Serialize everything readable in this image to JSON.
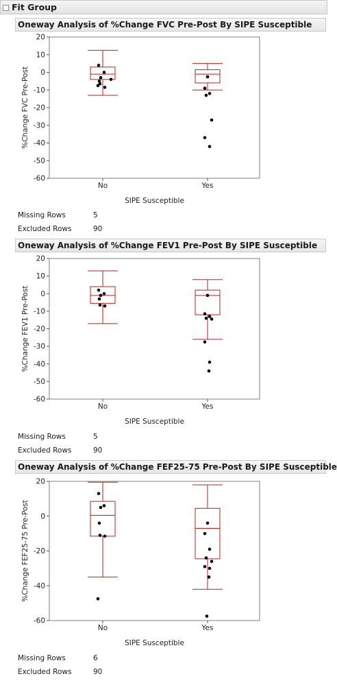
{
  "group_title": "Fit Group",
  "colors": {
    "box": "#b22222",
    "point": "#000000",
    "frame": "#7f7f7f"
  },
  "analyses": [
    {
      "title": "Oneway Analysis of %Change FVC Pre-Post By SIPE Susceptible",
      "chart_data": {
        "type": "box",
        "xlabel": "SIPE Susceptible",
        "ylabel": "%Change FVC Pre-Post",
        "categories": [
          "No",
          "Yes"
        ],
        "ylim": [
          -60,
          20
        ],
        "yticks": [
          -60,
          -50,
          -40,
          -30,
          -20,
          -10,
          0,
          10,
          20
        ],
        "grid": false,
        "boxes": [
          {
            "category": "No",
            "min": -13,
            "q1": -4,
            "median": -1,
            "q3": 3,
            "max": 12.5
          },
          {
            "category": "Yes",
            "min": -10,
            "q1": -6,
            "median": -1,
            "q3": 1.5,
            "max": 5
          }
        ],
        "points": [
          {
            "category": "No",
            "values": [
              4,
              0,
              -3,
              -5,
              -6.5,
              -8.5,
              -7.5,
              -4
            ]
          },
          {
            "category": "Yes",
            "values": [
              -2.5,
              -9,
              -12,
              -13,
              -27,
              -37,
              -42
            ]
          }
        ]
      },
      "missing_label": "Missing Rows",
      "missing_value": "5",
      "excluded_label": "Excluded Rows",
      "excluded_value": "90"
    },
    {
      "title": "Oneway Analysis of %Change FEV1 Pre-Post By SIPE Susceptible",
      "chart_data": {
        "type": "box",
        "xlabel": "SIPE Susceptible",
        "ylabel": "%Change FEV1 Pre-Post",
        "categories": [
          "No",
          "Yes"
        ],
        "ylim": [
          -60,
          20
        ],
        "yticks": [
          -60,
          -50,
          -40,
          -30,
          -20,
          -10,
          0,
          10,
          20
        ],
        "grid": false,
        "boxes": [
          {
            "category": "No",
            "min": -17,
            "q1": -5.5,
            "median": -1,
            "q3": 4,
            "max": 13
          },
          {
            "category": "Yes",
            "min": -26,
            "q1": -12,
            "median": -1,
            "q3": 2,
            "max": 8
          }
        ],
        "points": [
          {
            "category": "No",
            "values": [
              2,
              0,
              -1,
              -3,
              -6.5,
              -7
            ]
          },
          {
            "category": "Yes",
            "values": [
              -1,
              -11.5,
              -13,
              -14,
              -14.5,
              -27.5,
              -39,
              -44
            ]
          }
        ]
      },
      "missing_label": "Missing Rows",
      "missing_value": "5",
      "excluded_label": "Excluded Rows",
      "excluded_value": "90"
    },
    {
      "title": "Oneway Analysis of %Change FEF25-75 Pre-Post By SIPE Susceptible",
      "chart_data": {
        "type": "box",
        "xlabel": "SIPE Susceptible",
        "ylabel": "%Change FEF25-75 Pre-Post",
        "categories": [
          "No",
          "Yes"
        ],
        "ylim": [
          -60,
          20
        ],
        "yticks": [
          -60,
          -40,
          -20,
          0,
          20
        ],
        "grid": false,
        "boxes": [
          {
            "category": "No",
            "min": -35,
            "q1": -11.5,
            "median": 0.5,
            "q3": 8.5,
            "max": 19.5
          },
          {
            "category": "Yes",
            "min": -42,
            "q1": -24.5,
            "median": -7,
            "q3": 4.5,
            "max": 18
          }
        ],
        "points": [
          {
            "category": "No",
            "values": [
              13,
              6,
              5,
              -4,
              -11,
              -11.5,
              -47.5
            ]
          },
          {
            "category": "Yes",
            "values": [
              -4,
              -10,
              -19,
              -24,
              -26,
              -29,
              -30,
              -35,
              -57.5
            ]
          }
        ]
      },
      "missing_label": "Missing Rows",
      "missing_value": "6",
      "excluded_label": "Excluded Rows",
      "excluded_value": "90"
    }
  ]
}
